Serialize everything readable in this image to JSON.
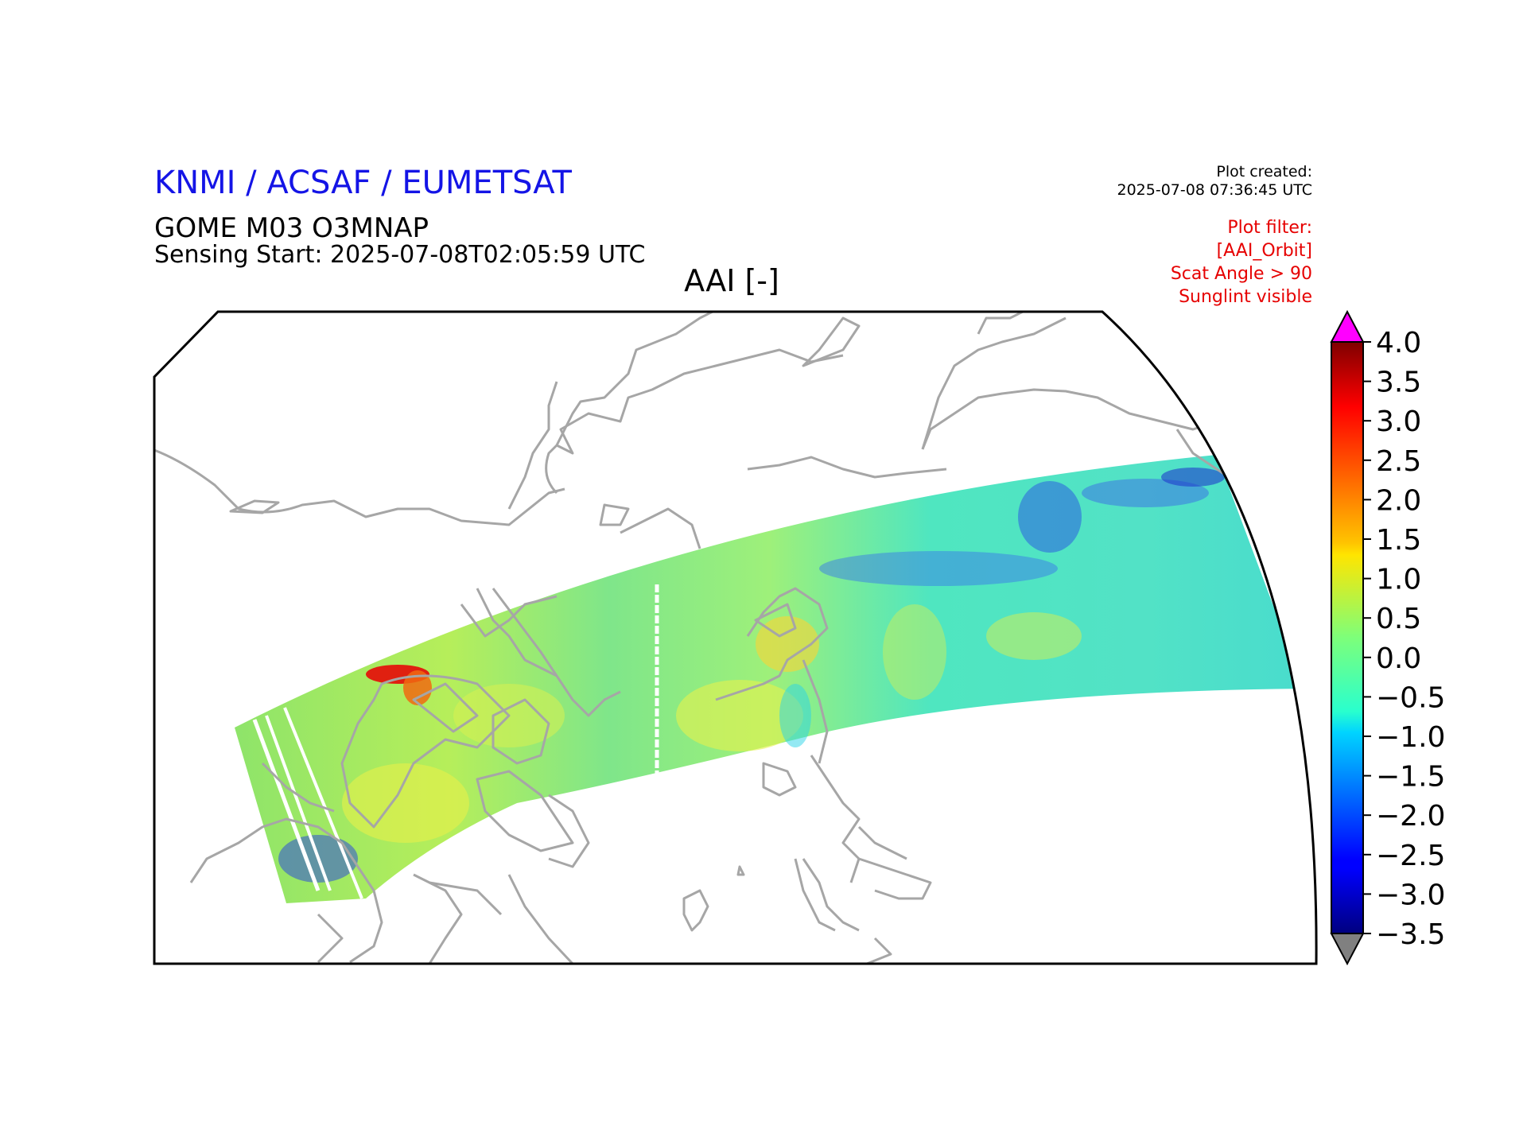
{
  "header": {
    "organization": "KNMI / ACSAF / EUMETSAT",
    "product": "GOME M03 O3MNAP",
    "sensing_start": "Sensing Start: 2025-07-08T02:05:59 UTC",
    "plot_title": "AAI [-]"
  },
  "plot_created": {
    "label": "Plot created:",
    "timestamp": "2025-07-08 07:36:45 UTC"
  },
  "plot_filter": {
    "lines": [
      "Plot filter:",
      "[AAI_Orbit]",
      "Scat Angle > 90",
      "Sunglint visible"
    ]
  },
  "colorbar": {
    "ticks": [
      "4.0",
      "3.5",
      "3.0",
      "2.5",
      "2.0",
      "1.5",
      "1.0",
      "0.5",
      "0.0",
      "−0.5",
      "−1.0",
      "−1.5",
      "−2.0",
      "−2.5",
      "−3.0",
      "−3.5"
    ],
    "min": -3.5,
    "max": 4.0,
    "colormap": "jet",
    "over_color": "#ff00ff",
    "under_color": "#808080"
  },
  "map": {
    "coastline_color": "#a6a6a6",
    "frame_color": "#000000"
  }
}
